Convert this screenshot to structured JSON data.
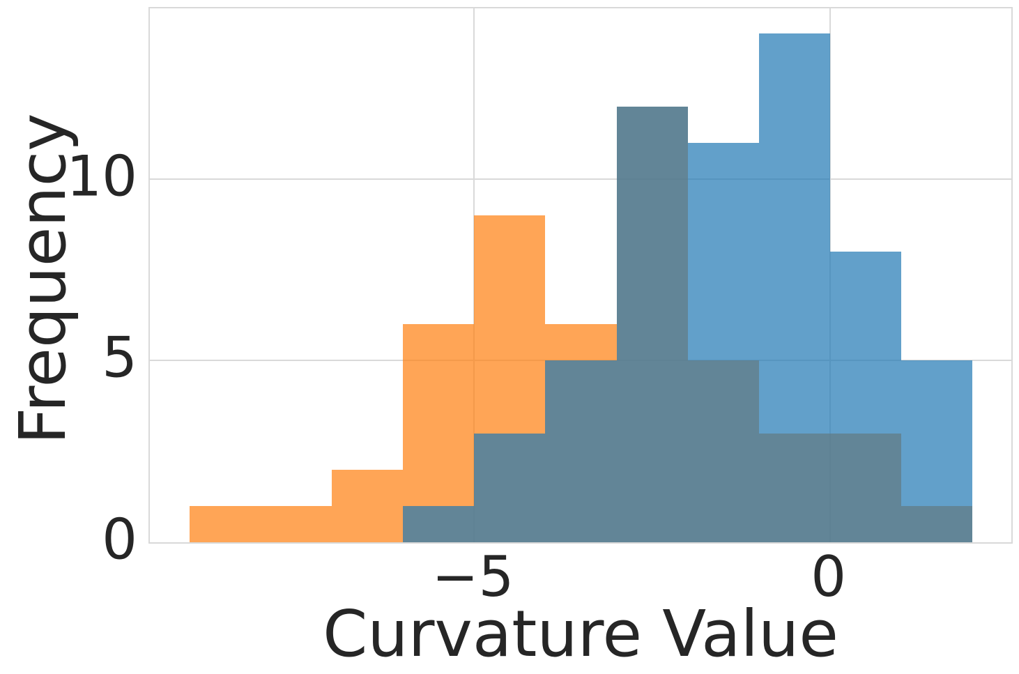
{
  "chart_data": {
    "type": "histogram",
    "title": "",
    "xlabel": "Curvature Value",
    "ylabel": "Frequency",
    "xlim": [
      -9.56,
      2.55
    ],
    "ylim": [
      0,
      14.7
    ],
    "bin_width": 1,
    "grid": true,
    "legend": false,
    "xticks": [
      {
        "value": -5,
        "label": "−5"
      },
      {
        "value": 0,
        "label": "0"
      }
    ],
    "yticks": [
      {
        "value": 0,
        "label": "0"
      },
      {
        "value": 5,
        "label": "5"
      },
      {
        "value": 10,
        "label": "10"
      }
    ],
    "series": [
      {
        "name": "orange-histogram",
        "color": "#ff7f0e",
        "alpha": 0.7,
        "bin_start": -9,
        "bin_edges": [
          -9,
          -8,
          -7,
          -6,
          -5,
          -4,
          -3,
          -2,
          -1,
          0,
          1,
          2
        ],
        "counts": [
          1,
          1,
          2,
          6,
          9,
          6,
          12,
          5,
          3,
          3,
          1
        ]
      },
      {
        "name": "blue-histogram",
        "color": "#1f77b4",
        "alpha": 0.7,
        "bin_start": -6,
        "bin_edges": [
          -6,
          -5,
          -4,
          -3,
          -2,
          -1,
          0,
          1,
          2
        ],
        "counts": [
          1,
          3,
          5,
          12,
          11,
          14,
          8,
          5
        ]
      }
    ]
  },
  "styles": {
    "background": "#ffffff",
    "text_color": "#262626",
    "grid_color": "#d9d9d9",
    "orange_rendered": "#fda556",
    "blue_rendered": "#619eca",
    "overlap_rendered": "#618192"
  }
}
